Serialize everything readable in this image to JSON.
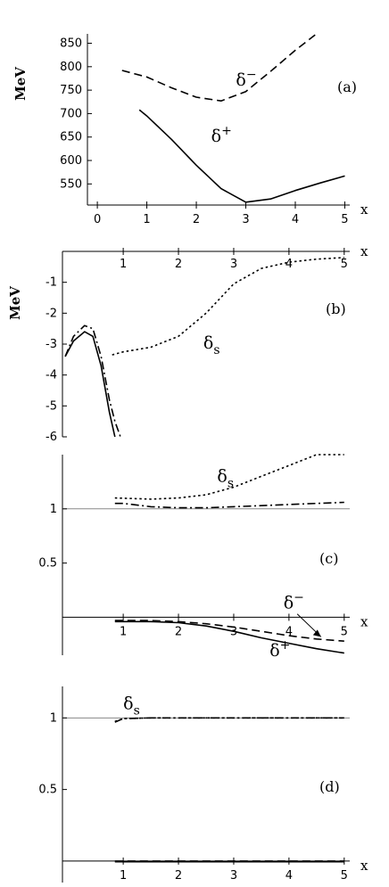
{
  "chart_data": [
    {
      "panel": "(a)",
      "type": "line",
      "ylabel": "MeV",
      "xlabel": "x",
      "xlim": [
        -0.2,
        5.1
      ],
      "ylim": [
        505,
        870
      ],
      "xticks": [
        0,
        1,
        2,
        3,
        4,
        5
      ],
      "yticks": [
        550,
        600,
        650,
        700,
        750,
        800,
        850
      ],
      "series": [
        {
          "name": "δ⁻",
          "dash": "dashed",
          "x": [
            0.5,
            1.0,
            1.5,
            2.0,
            2.5,
            3.0,
            3.5,
            4.0,
            4.4
          ],
          "y": [
            792,
            778,
            755,
            735,
            727,
            747,
            790,
            835,
            868
          ]
        },
        {
          "name": "δ⁺",
          "dash": "solid",
          "x": [
            0.85,
            1.0,
            1.5,
            2.0,
            2.5,
            3.0,
            3.5,
            4.0,
            4.5,
            5.0
          ],
          "y": [
            708,
            695,
            645,
            590,
            540,
            511,
            518,
            536,
            552,
            567
          ]
        }
      ],
      "annotations": [
        {
          "base": "δ",
          "sup": "−",
          "x": 2.8,
          "y": 760
        },
        {
          "base": "δ",
          "sup": "+",
          "x": 2.3,
          "y": 640
        }
      ]
    },
    {
      "panel": "(b)",
      "type": "line",
      "ylabel": "MeV",
      "xlabel": "x",
      "xlim": [
        -0.1,
        5.1
      ],
      "ylim": [
        -6,
        0
      ],
      "xticks": [
        1,
        2,
        3,
        4,
        5
      ],
      "yticks": [
        -1,
        -2,
        -3,
        -4,
        -5,
        -6
      ],
      "series": [
        {
          "name": "δs",
          "dash": "dotted",
          "x": [
            0.8,
            1.0,
            1.5,
            2.0,
            2.5,
            3.0,
            3.5,
            4.0,
            4.5,
            5.0
          ],
          "y": [
            -3.35,
            -3.25,
            -3.1,
            -2.75,
            -2.0,
            -1.05,
            -0.55,
            -0.35,
            -0.25,
            -0.2
          ]
        },
        {
          "name": "",
          "dash": "dashdot",
          "x": [
            -0.05,
            0.1,
            0.3,
            0.45,
            0.6,
            0.75,
            0.85,
            0.95
          ],
          "y": [
            -3.4,
            -2.75,
            -2.4,
            -2.5,
            -3.4,
            -4.8,
            -5.5,
            -6.05
          ]
        },
        {
          "name": "",
          "dash": "solid",
          "x": [
            -0.05,
            0.1,
            0.3,
            0.45,
            0.6,
            0.75,
            0.85
          ],
          "y": [
            -3.4,
            -2.9,
            -2.6,
            -2.75,
            -3.7,
            -5.2,
            -6.05
          ]
        }
      ],
      "annotations": [
        {
          "base": "δ",
          "sub": "s",
          "x": 2.45,
          "y": -3.15
        }
      ]
    },
    {
      "panel": "(c)",
      "type": "line",
      "xlabel": "x",
      "xlim": [
        -0.1,
        5.1
      ],
      "ylim": [
        -0.35,
        1.5
      ],
      "xticks": [
        1,
        2,
        3,
        4,
        5
      ],
      "yticks": [
        0.5,
        1
      ],
      "ytick_labels": [
        "0.5",
        "1"
      ],
      "reference_line": 1,
      "series": [
        {
          "name": "δs",
          "dash": "dotted",
          "x": [
            0.85,
            1.5,
            2.0,
            2.5,
            3.0,
            3.5,
            4.0,
            4.5,
            5.0
          ],
          "y": [
            1.1,
            1.09,
            1.1,
            1.13,
            1.2,
            1.3,
            1.4,
            1.5,
            1.58
          ]
        },
        {
          "name": "",
          "dash": "dashdot",
          "x": [
            0.85,
            1.0,
            1.5,
            2.0,
            2.5,
            3.0,
            3.5,
            4.0,
            4.5,
            5.0
          ],
          "y": [
            1.05,
            1.05,
            1.02,
            1.01,
            1.01,
            1.02,
            1.03,
            1.04,
            1.05,
            1.06
          ]
        },
        {
          "name": "δ⁻",
          "dash": "dashed",
          "x": [
            0.85,
            1.5,
            2.0,
            2.5,
            3.0,
            3.5,
            4.0,
            4.5,
            5.0
          ],
          "y": [
            -0.03,
            -0.03,
            -0.04,
            -0.06,
            -0.09,
            -0.13,
            -0.17,
            -0.2,
            -0.22
          ]
        },
        {
          "name": "δ⁺",
          "dash": "solid",
          "x": [
            0.85,
            1.5,
            2.0,
            2.5,
            3.0,
            3.5,
            4.0,
            4.5,
            5.0
          ],
          "y": [
            -0.04,
            -0.04,
            -0.05,
            -0.08,
            -0.13,
            -0.19,
            -0.24,
            -0.29,
            -0.33
          ]
        }
      ],
      "annotations": [
        {
          "base": "δ",
          "sub": "s",
          "x": 2.7,
          "y": 1.25
        },
        {
          "base": "δ",
          "sup": "−",
          "x": 3.9,
          "y": 0.08
        },
        {
          "base": "δ",
          "sup": "+",
          "x": 3.65,
          "y": -0.36
        }
      ]
    },
    {
      "panel": "(d)",
      "type": "line",
      "xlabel": "x",
      "xlim": [
        -0.1,
        5.1
      ],
      "ylim": [
        -0.15,
        1.22
      ],
      "xticks": [
        1,
        2,
        3,
        4,
        5
      ],
      "yticks": [
        0.5,
        1
      ],
      "ytick_labels": [
        "0.5",
        "1"
      ],
      "reference_line": 1,
      "series": [
        {
          "name": "δs",
          "dash": "dotted",
          "x": [
            0.85,
            1.0,
            1.5,
            2.0,
            3.0,
            4.0,
            5.0
          ],
          "y": [
            0.975,
            0.995,
            1.0,
            1.0,
            1.0,
            1.0,
            1.0
          ]
        },
        {
          "name": "",
          "dash": "dashdot",
          "x": [
            0.85,
            1.0,
            1.5,
            2.0,
            3.0,
            4.0,
            5.0
          ],
          "y": [
            0.97,
            0.995,
            1.0,
            1.0,
            1.0,
            1.0,
            1.0
          ]
        },
        {
          "name": "",
          "dash": "dashed",
          "x": [
            0.85,
            5.0
          ],
          "y": [
            0.0,
            0.0
          ]
        },
        {
          "name": "",
          "dash": "solid",
          "x": [
            0.85,
            5.0
          ],
          "y": [
            -0.005,
            -0.005
          ]
        }
      ],
      "annotations": [
        {
          "base": "δ",
          "sub": "s",
          "x": 1.0,
          "y": 1.06
        }
      ]
    }
  ]
}
